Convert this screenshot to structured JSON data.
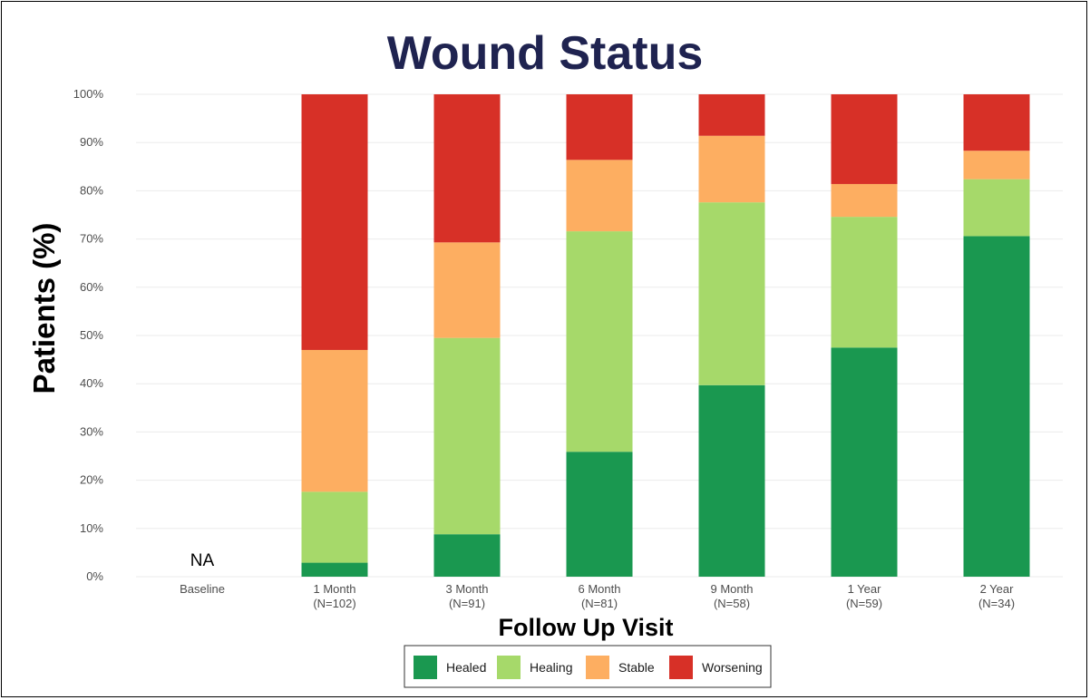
{
  "chart_data": {
    "type": "bar",
    "stacked": true,
    "title": "Wound Status",
    "xlabel": "Follow Up Visit",
    "ylabel": "Patients (%)",
    "ylim": [
      0,
      100
    ],
    "yticks": [
      "0%",
      "10%",
      "20%",
      "30%",
      "40%",
      "50%",
      "60%",
      "70%",
      "80%",
      "90%",
      "100%"
    ],
    "categories": [
      {
        "label": "Baseline",
        "n": ""
      },
      {
        "label": "1 Month",
        "n": "(N=102)"
      },
      {
        "label": "3 Month",
        "n": "(N=91)"
      },
      {
        "label": "6 Month",
        "n": "(N=81)"
      },
      {
        "label": "9 Month",
        "n": "(N=58)"
      },
      {
        "label": "1 Year",
        "n": "(N=59)"
      },
      {
        "label": "2 Year",
        "n": "(N=34)"
      }
    ],
    "annotations": [
      {
        "category": "Baseline",
        "text": "NA"
      }
    ],
    "series": [
      {
        "name": "Healed",
        "color": "#1a9850",
        "values": [
          null,
          2.9,
          8.8,
          25.9,
          39.7,
          47.5,
          70.6
        ]
      },
      {
        "name": "Healing",
        "color": "#a6d96a",
        "values": [
          null,
          14.7,
          40.7,
          45.7,
          37.9,
          27.1,
          11.8
        ]
      },
      {
        "name": "Stable",
        "color": "#fdae61",
        "values": [
          null,
          29.4,
          19.8,
          14.8,
          13.8,
          6.8,
          5.9
        ]
      },
      {
        "name": "Worsening",
        "color": "#d73027",
        "values": [
          null,
          53.0,
          30.7,
          13.6,
          8.6,
          18.6,
          11.7
        ]
      }
    ],
    "legend_position": "bottom",
    "grid": true
  }
}
